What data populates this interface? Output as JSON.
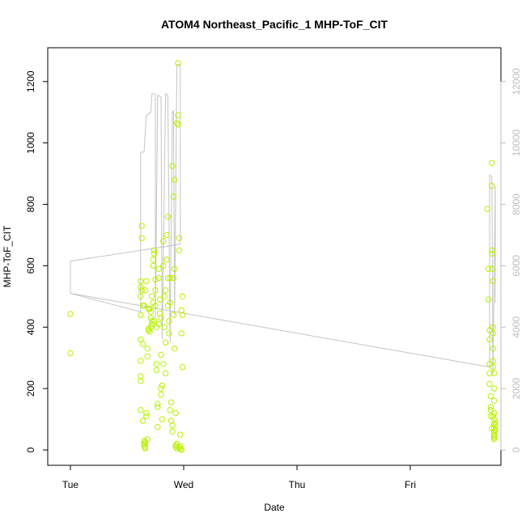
{
  "chart_data": {
    "type": "scatter",
    "title": "ATOM4 Northeast_Pacific_1 MHP-ToF_CIT",
    "xlabel": "Date",
    "ylabel": "MHP-ToF_CIT",
    "x_ticks": [
      {
        "label": "Tue",
        "day": 0
      },
      {
        "label": "Wed",
        "day": 1
      },
      {
        "label": "Thu",
        "day": 2
      },
      {
        "label": "Fri",
        "day": 3
      }
    ],
    "xlim_days": [
      -0.2,
      3.8
    ],
    "ylim": [
      -50,
      1310
    ],
    "y_ticks": [
      0,
      200,
      400,
      600,
      800,
      1000,
      1200
    ],
    "y2_ticks": [
      0,
      2000,
      4000,
      6000,
      8000,
      10000,
      12000
    ],
    "y2lim": [
      -500,
      13100
    ],
    "grid": false,
    "colors": {
      "points": "#b8f000",
      "line": "#c4c4c4",
      "axis": "#000000",
      "right_axis": "#bdbdbd"
    },
    "series": [
      {
        "kind": "points",
        "axis": "left",
        "points": [
          [
            0.0,
            443
          ],
          [
            0.0,
            315
          ],
          [
            0.62,
            550
          ],
          [
            0.62,
            530
          ],
          [
            0.62,
            500
          ],
          [
            0.62,
            440
          ],
          [
            0.62,
            360
          ],
          [
            0.62,
            290
          ],
          [
            0.62,
            240
          ],
          [
            0.62,
            225
          ],
          [
            0.62,
            130
          ],
          [
            0.63,
            730
          ],
          [
            0.63,
            690
          ],
          [
            0.63,
            520
          ],
          [
            0.64,
            470
          ],
          [
            0.64,
            345
          ],
          [
            0.64,
            95
          ],
          [
            0.65,
            30
          ],
          [
            0.65,
            20
          ],
          [
            0.65,
            15
          ],
          [
            0.66,
            10
          ],
          [
            0.66,
            5
          ],
          [
            0.66,
            25
          ],
          [
            0.67,
            110
          ],
          [
            0.67,
            120
          ],
          [
            0.68,
            35
          ],
          [
            0.68,
            305
          ],
          [
            0.68,
            330
          ],
          [
            0.69,
            390
          ],
          [
            0.69,
            395
          ],
          [
            0.7,
            385
          ],
          [
            0.7,
            460
          ],
          [
            0.71,
            450
          ],
          [
            0.71,
            430
          ],
          [
            0.72,
            420
          ],
          [
            0.72,
            410
          ],
          [
            0.72,
            500
          ],
          [
            0.73,
            480
          ],
          [
            0.73,
            620
          ],
          [
            0.73,
            600
          ],
          [
            0.74,
            650
          ],
          [
            0.74,
            640
          ],
          [
            0.75,
            555
          ],
          [
            0.75,
            520
          ],
          [
            0.75,
            470
          ],
          [
            0.76,
            400
          ],
          [
            0.76,
            280
          ],
          [
            0.76,
            260
          ],
          [
            0.77,
            150
          ],
          [
            0.77,
            140
          ],
          [
            0.77,
            75
          ],
          [
            0.78,
            590
          ],
          [
            0.78,
            560
          ],
          [
            0.79,
            490
          ],
          [
            0.79,
            445
          ],
          [
            0.8,
            430
          ],
          [
            0.8,
            200
          ],
          [
            0.8,
            180
          ],
          [
            0.81,
            210
          ],
          [
            0.81,
            100
          ],
          [
            0.82,
            600
          ],
          [
            0.82,
            680
          ],
          [
            0.83,
            500
          ],
          [
            0.83,
            400
          ],
          [
            0.84,
            350
          ],
          [
            0.84,
            250
          ],
          [
            0.85,
            620
          ],
          [
            0.85,
            700
          ],
          [
            0.86,
            560
          ],
          [
            0.86,
            470
          ],
          [
            0.87,
            420
          ],
          [
            0.87,
            380
          ],
          [
            0.88,
            560
          ],
          [
            0.88,
            480
          ],
          [
            0.88,
            130
          ],
          [
            0.89,
            155
          ],
          [
            0.89,
            95
          ],
          [
            0.9,
            80
          ],
          [
            0.9,
            60
          ],
          [
            0.9,
            925
          ],
          [
            0.91,
            825
          ],
          [
            0.91,
            560
          ],
          [
            0.91,
            440
          ],
          [
            0.92,
            880
          ],
          [
            0.92,
            590
          ],
          [
            0.92,
            330
          ],
          [
            0.93,
            120
          ],
          [
            0.93,
            15
          ],
          [
            0.93,
            10
          ],
          [
            0.94,
            5
          ],
          [
            0.94,
            20
          ],
          [
            0.94,
            1065
          ],
          [
            0.95,
            1090
          ],
          [
            0.95,
            1260
          ],
          [
            0.95,
            1060
          ],
          [
            0.96,
            690
          ],
          [
            0.96,
            650
          ],
          [
            0.96,
            8
          ],
          [
            0.97,
            3
          ],
          [
            0.97,
            12
          ],
          [
            0.97,
            50
          ],
          [
            0.98,
            0
          ],
          [
            0.98,
            380
          ],
          [
            0.98,
            455
          ],
          [
            0.99,
            440
          ],
          [
            0.99,
            500
          ],
          [
            0.99,
            270
          ],
          [
            0.86,
            760
          ],
          [
            0.84,
            520
          ],
          [
            0.78,
            410
          ],
          [
            0.74,
            420
          ],
          [
            0.71,
            400
          ],
          [
            0.69,
            460
          ],
          [
            0.67,
            550
          ],
          [
            0.66,
            520
          ],
          [
            0.65,
            470
          ],
          [
            0.8,
            310
          ],
          [
            0.82,
            280
          ],
          [
            3.68,
            785
          ],
          [
            3.69,
            590
          ],
          [
            3.69,
            490
          ],
          [
            3.7,
            390
          ],
          [
            3.7,
            360
          ],
          [
            3.7,
            280
          ],
          [
            3.7,
            250
          ],
          [
            3.7,
            215
          ],
          [
            3.71,
            175
          ],
          [
            3.71,
            140
          ],
          [
            3.71,
            130
          ],
          [
            3.71,
            110
          ],
          [
            3.72,
            935
          ],
          [
            3.72,
            860
          ],
          [
            3.72,
            650
          ],
          [
            3.72,
            640
          ],
          [
            3.72,
            590
          ],
          [
            3.73,
            550
          ],
          [
            3.73,
            400
          ],
          [
            3.73,
            380
          ],
          [
            3.73,
            330
          ],
          [
            3.73,
            290
          ],
          [
            3.73,
            270
          ],
          [
            3.74,
            250
          ],
          [
            3.74,
            200
          ],
          [
            3.74,
            160
          ],
          [
            3.74,
            120
          ],
          [
            3.74,
            100
          ],
          [
            3.74,
            85
          ],
          [
            3.74,
            70
          ],
          [
            3.74,
            60
          ],
          [
            3.74,
            50
          ],
          [
            3.74,
            45
          ],
          [
            3.74,
            40
          ],
          [
            3.74,
            35
          ],
          [
            3.75,
            80
          ],
          [
            3.75,
            90
          ],
          [
            3.75,
            65
          ],
          [
            3.73,
            110
          ],
          [
            3.72,
            70
          ]
        ]
      },
      {
        "kind": "line",
        "axis": "right",
        "points": [
          [
            0.0,
            6150
          ],
          [
            0.0,
            5100
          ],
          [
            0.62,
            4500
          ],
          [
            0.62,
            9700
          ],
          [
            0.65,
            9700
          ],
          [
            0.67,
            10900
          ],
          [
            0.71,
            11000
          ],
          [
            0.72,
            11600
          ],
          [
            0.75,
            11600
          ],
          [
            0.75,
            4300
          ],
          [
            0.77,
            11550
          ],
          [
            0.8,
            11500
          ],
          [
            0.81,
            3600
          ],
          [
            0.84,
            11600
          ],
          [
            0.86,
            11550
          ],
          [
            0.88,
            3500
          ],
          [
            0.9,
            11000
          ],
          [
            0.91,
            11050
          ],
          [
            0.92,
            4400
          ],
          [
            0.94,
            12550
          ],
          [
            0.97,
            12550
          ],
          [
            0.97,
            6700
          ],
          [
            0.62,
            6500
          ],
          [
            0.0,
            6150
          ],
          [
            0.0,
            5100
          ],
          [
            3.7,
            2700
          ],
          [
            3.7,
            8950
          ],
          [
            3.72,
            8900
          ],
          [
            3.73,
            2500
          ],
          [
            3.75,
            8600
          ],
          [
            3.75,
            4800
          ]
        ]
      }
    ]
  }
}
